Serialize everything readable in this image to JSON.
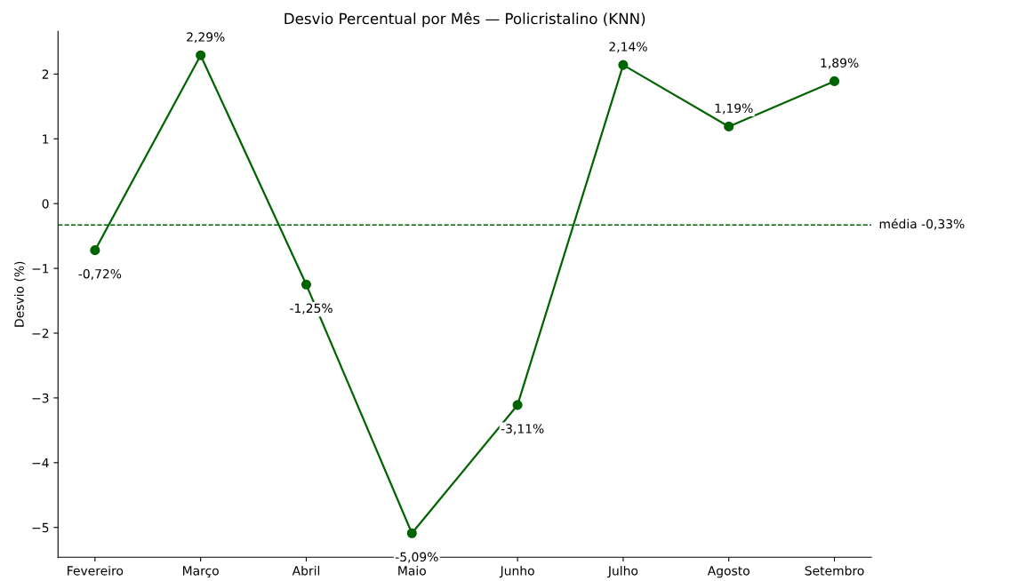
{
  "chart_data": {
    "type": "line",
    "title": "Desvio Percentual por Mês — Policristalino (KNN)",
    "ylabel": "Desvio (%)",
    "categories": [
      "Fevereiro",
      "Março",
      "Abril",
      "Maio",
      "Junho",
      "Julho",
      "Agosto",
      "Setembro"
    ],
    "series": [
      {
        "color": "#006400",
        "values": [
          -0.72,
          2.29,
          -1.25,
          -5.09,
          -3.11,
          2.14,
          1.19,
          1.89
        ],
        "value_labels": [
          "-0,72%",
          "2,29%",
          "-1,25%",
          "-5,09%",
          "-3,11%",
          "2,14%",
          "1,19%",
          "1,89%"
        ]
      }
    ],
    "ylim": [
      -5.459,
      2.659
    ],
    "yticks": [
      {
        "value": -5,
        "label": "−5"
      },
      {
        "value": -4,
        "label": "−4"
      },
      {
        "value": -3,
        "label": "−3"
      },
      {
        "value": -2,
        "label": "−2"
      },
      {
        "value": -1,
        "label": "−1"
      },
      0,
      1,
      2
    ],
    "ref_lines": [
      {
        "axis": "y",
        "value": -0.33,
        "label": "média -0,33%",
        "color": "#006400",
        "line_style": "dashed"
      }
    ],
    "marker": "circle",
    "line_style": "solid",
    "grid": false,
    "legend": false
  }
}
